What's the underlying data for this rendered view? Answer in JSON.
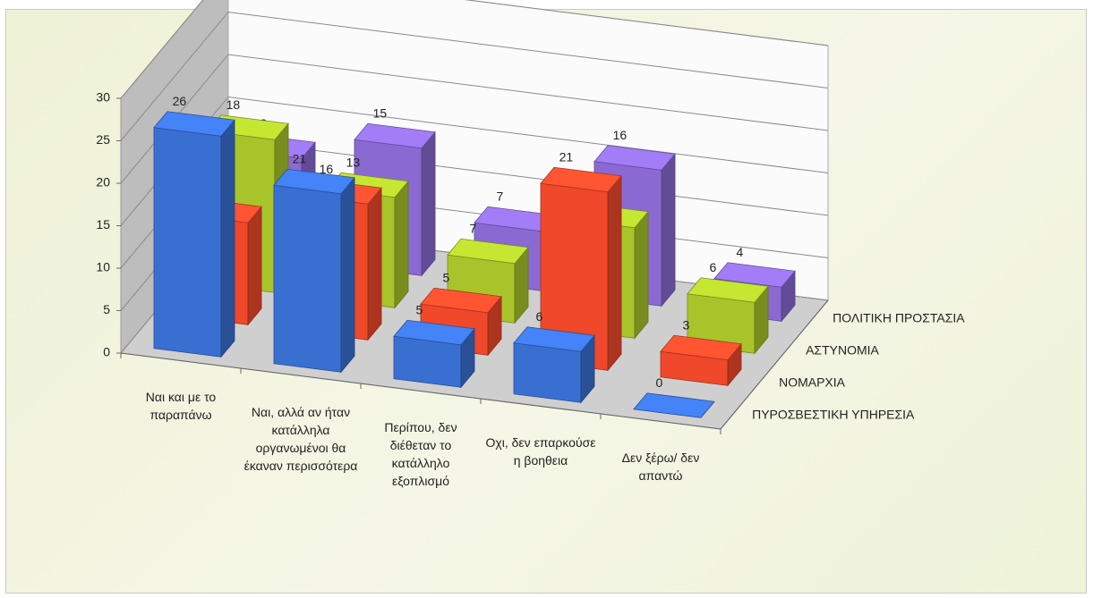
{
  "chart_data": {
    "type": "bar3d",
    "categories": [
      "Ναι και με το παραπάνω",
      "Ναι, αλλά αν ήταν κατάλληλα οργανωμένοι θα έκαναν περισσότερα",
      "Περίπου, δεν διέθεταν το κατάλληλο εξοπλισμό",
      "Οχι, δεν επαρκούσε η βοηθεια",
      "Δεν ξέρω/ δεν απαντώ"
    ],
    "series": [
      {
        "name": "ΠΥΡΟΣΒΕΣΤΙΚΗ ΥΠΗΡΕΣΙΑ",
        "color": "#3a6fd2",
        "values": [
          26,
          21,
          5,
          6,
          0
        ]
      },
      {
        "name": "ΝΟΜΑΡΧΙΑ",
        "color": "#f0482a",
        "values": [
          12,
          16,
          5,
          21,
          3
        ]
      },
      {
        "name": "ΑΣΤΥΝΟΜΙΑ",
        "color": "#a8c42a",
        "values": [
          18,
          13,
          7,
          13,
          6
        ]
      },
      {
        "name": "ΠΟΛΙΤΙΚΗ ΠΡΟΣΤΑΣΙΑ",
        "color": "#8a6ad2",
        "values": [
          12,
          15,
          7,
          16,
          4
        ]
      }
    ],
    "ylim": [
      0,
      30
    ],
    "yticks": [
      0,
      5,
      10,
      15,
      20,
      25,
      30
    ],
    "grid": true
  }
}
